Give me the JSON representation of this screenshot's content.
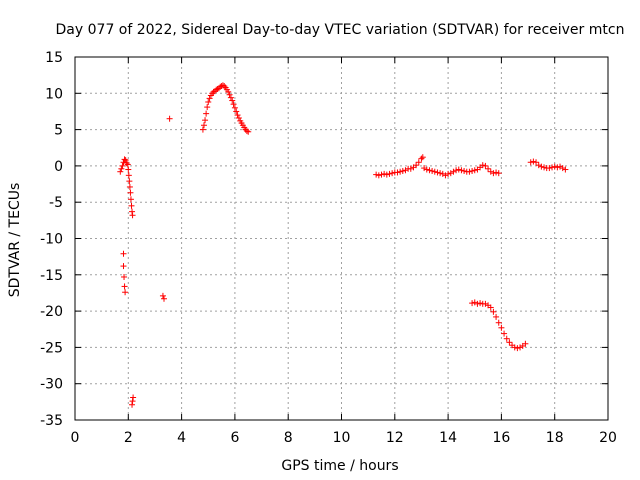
{
  "chart_data": {
    "type": "scatter",
    "title": "Day 077 of 2022, Sidereal Day-to-day VTEC variation (SDTVAR) for receiver mtcn",
    "xlabel": "GPS time / hours",
    "ylabel": "SDTVAR / TECUs",
    "xlim": [
      0,
      20
    ],
    "ylim": [
      -35,
      15
    ],
    "xticks": [
      0,
      2,
      4,
      6,
      8,
      10,
      12,
      14,
      16,
      18,
      20
    ],
    "yticks": [
      -35,
      -30,
      -25,
      -20,
      -15,
      -10,
      -5,
      0,
      5,
      10,
      15
    ],
    "grid": true,
    "marker": "+",
    "color": "#ff0000",
    "series": [
      {
        "name": "SDTVAR",
        "points": [
          [
            1.7,
            -0.8
          ],
          [
            1.74,
            -0.4
          ],
          [
            1.78,
            0.0
          ],
          [
            1.82,
            0.5
          ],
          [
            1.86,
            0.9
          ],
          [
            1.9,
            0.8
          ],
          [
            1.94,
            0.4
          ],
          [
            1.98,
            0.2
          ],
          [
            2.0,
            -0.5
          ],
          [
            2.02,
            -1.3
          ],
          [
            2.04,
            -2.1
          ],
          [
            2.06,
            -2.9
          ],
          [
            2.08,
            -3.7
          ],
          [
            2.1,
            -4.6
          ],
          [
            2.12,
            -5.5
          ],
          [
            2.14,
            -6.3
          ],
          [
            2.16,
            -6.8
          ],
          [
            1.82,
            -12.1
          ],
          [
            1.82,
            -13.8
          ],
          [
            1.84,
            -15.3
          ],
          [
            1.86,
            -16.6
          ],
          [
            1.88,
            -17.4
          ],
          [
            2.14,
            -32.9
          ],
          [
            2.16,
            -32.4
          ],
          [
            2.18,
            -31.9
          ],
          [
            3.3,
            -17.9
          ],
          [
            3.34,
            -18.3
          ],
          [
            3.55,
            6.5
          ],
          [
            4.8,
            5.0
          ],
          [
            4.84,
            5.6
          ],
          [
            4.88,
            6.3
          ],
          [
            4.92,
            7.2
          ],
          [
            4.96,
            8.1
          ],
          [
            5.0,
            8.8
          ],
          [
            5.05,
            9.3
          ],
          [
            5.1,
            9.7
          ],
          [
            5.15,
            10.0
          ],
          [
            5.2,
            10.2
          ],
          [
            5.25,
            10.3
          ],
          [
            5.3,
            10.5
          ],
          [
            5.35,
            10.6
          ],
          [
            5.4,
            10.7
          ],
          [
            5.45,
            10.9
          ],
          [
            5.5,
            11.0
          ],
          [
            5.55,
            11.1
          ],
          [
            5.6,
            11.0
          ],
          [
            5.65,
            10.8
          ],
          [
            5.7,
            10.5
          ],
          [
            5.75,
            10.2
          ],
          [
            5.8,
            9.8
          ],
          [
            5.85,
            9.4
          ],
          [
            5.9,
            9.0
          ],
          [
            5.95,
            8.5
          ],
          [
            6.0,
            8.0
          ],
          [
            6.05,
            7.5
          ],
          [
            6.1,
            7.0
          ],
          [
            6.15,
            6.6
          ],
          [
            6.2,
            6.2
          ],
          [
            6.25,
            5.9
          ],
          [
            6.3,
            5.6
          ],
          [
            6.35,
            5.3
          ],
          [
            6.4,
            5.0
          ],
          [
            6.45,
            4.8
          ],
          [
            6.5,
            4.7
          ],
          [
            11.3,
            -1.2
          ],
          [
            11.4,
            -1.3
          ],
          [
            11.5,
            -1.2
          ],
          [
            11.6,
            -1.1
          ],
          [
            11.7,
            -1.2
          ],
          [
            11.8,
            -1.1
          ],
          [
            11.9,
            -1.0
          ],
          [
            12.0,
            -0.9
          ],
          [
            12.1,
            -0.9
          ],
          [
            12.2,
            -0.8
          ],
          [
            12.3,
            -0.7
          ],
          [
            12.4,
            -0.6
          ],
          [
            12.5,
            -0.4
          ],
          [
            12.6,
            -0.4
          ],
          [
            12.7,
            -0.2
          ],
          [
            12.8,
            0.1
          ],
          [
            12.9,
            0.5
          ],
          [
            13.0,
            1.0
          ],
          [
            13.05,
            1.2
          ],
          [
            13.1,
            -0.3
          ],
          [
            13.2,
            -0.5
          ],
          [
            13.3,
            -0.6
          ],
          [
            13.4,
            -0.7
          ],
          [
            13.5,
            -0.8
          ],
          [
            13.6,
            -0.9
          ],
          [
            13.7,
            -1.0
          ],
          [
            13.8,
            -1.1
          ],
          [
            13.9,
            -1.3
          ],
          [
            14.0,
            -1.1
          ],
          [
            14.1,
            -1.0
          ],
          [
            14.2,
            -0.8
          ],
          [
            14.3,
            -0.6
          ],
          [
            14.4,
            -0.5
          ],
          [
            14.5,
            -0.6
          ],
          [
            14.6,
            -0.7
          ],
          [
            14.7,
            -0.8
          ],
          [
            14.8,
            -0.8
          ],
          [
            14.9,
            -0.7
          ],
          [
            15.0,
            -0.6
          ],
          [
            15.1,
            -0.5
          ],
          [
            15.2,
            -0.2
          ],
          [
            15.3,
            0.1
          ],
          [
            15.4,
            0.0
          ],
          [
            15.5,
            -0.4
          ],
          [
            15.6,
            -0.8
          ],
          [
            15.7,
            -1.0
          ],
          [
            15.8,
            -0.9
          ],
          [
            15.9,
            -1.0
          ],
          [
            17.1,
            0.5
          ],
          [
            17.2,
            0.6
          ],
          [
            17.3,
            0.5
          ],
          [
            17.4,
            0.1
          ],
          [
            17.5,
            -0.1
          ],
          [
            17.6,
            -0.2
          ],
          [
            17.7,
            -0.3
          ],
          [
            17.8,
            -0.3
          ],
          [
            17.9,
            -0.2
          ],
          [
            18.0,
            -0.1
          ],
          [
            18.1,
            -0.2
          ],
          [
            18.2,
            -0.1
          ],
          [
            18.3,
            -0.3
          ],
          [
            18.4,
            -0.5
          ],
          [
            14.9,
            -18.9
          ],
          [
            15.0,
            -18.8
          ],
          [
            15.1,
            -19.0
          ],
          [
            15.2,
            -18.9
          ],
          [
            15.3,
            -19.0
          ],
          [
            15.4,
            -19.0
          ],
          [
            15.5,
            -19.2
          ],
          [
            15.6,
            -19.5
          ],
          [
            15.7,
            -20.1
          ],
          [
            15.8,
            -20.8
          ],
          [
            15.9,
            -21.6
          ],
          [
            16.0,
            -22.3
          ],
          [
            16.1,
            -23.1
          ],
          [
            16.2,
            -23.8
          ],
          [
            16.3,
            -24.3
          ],
          [
            16.4,
            -24.7
          ],
          [
            16.5,
            -25.0
          ],
          [
            16.6,
            -25.1
          ],
          [
            16.7,
            -25.0
          ],
          [
            16.8,
            -24.8
          ],
          [
            16.9,
            -24.5
          ]
        ]
      }
    ]
  }
}
